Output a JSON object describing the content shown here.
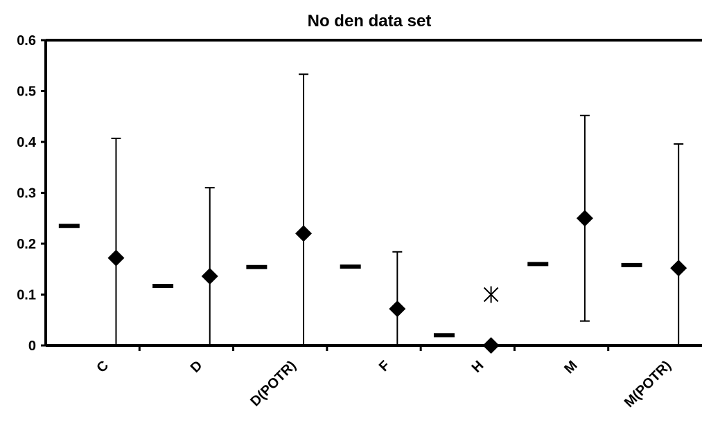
{
  "chart_data": {
    "type": "scatter",
    "title": "No den data set",
    "xlabel": "",
    "ylabel": "",
    "ylim": [
      0,
      0.6
    ],
    "yticks": [
      0,
      0.1,
      0.2,
      0.3,
      0.4,
      0.5,
      0.6
    ],
    "ytick_labels": [
      "0",
      "0.1",
      "0.2",
      "0.3",
      "0.4",
      "0.5",
      "0.6"
    ],
    "categories": [
      "C",
      "D",
      "D(POTR)",
      "F",
      "H",
      "M",
      "M(POTR)"
    ],
    "series": [
      {
        "marker": "dash",
        "values": [
          0.235,
          0.117,
          0.154,
          0.155,
          0.02,
          0.16,
          0.158
        ]
      },
      {
        "marker": "diamond",
        "values": [
          0.172,
          0.136,
          0.22,
          0.072,
          0.0,
          0.25,
          0.152
        ],
        "error_upper": [
          0.407,
          0.31,
          0.533,
          0.184,
          null,
          0.452,
          0.396
        ],
        "error_lower": [
          0.0,
          0.0,
          0.0,
          0.0,
          null,
          0.048,
          0.0
        ]
      },
      {
        "marker": "asterisk",
        "points": [
          {
            "category": "H",
            "value": 0.1
          }
        ]
      }
    ],
    "grid": false,
    "legend": "none",
    "colors": {
      "marks": "#000000",
      "background": "#ffffff"
    }
  }
}
